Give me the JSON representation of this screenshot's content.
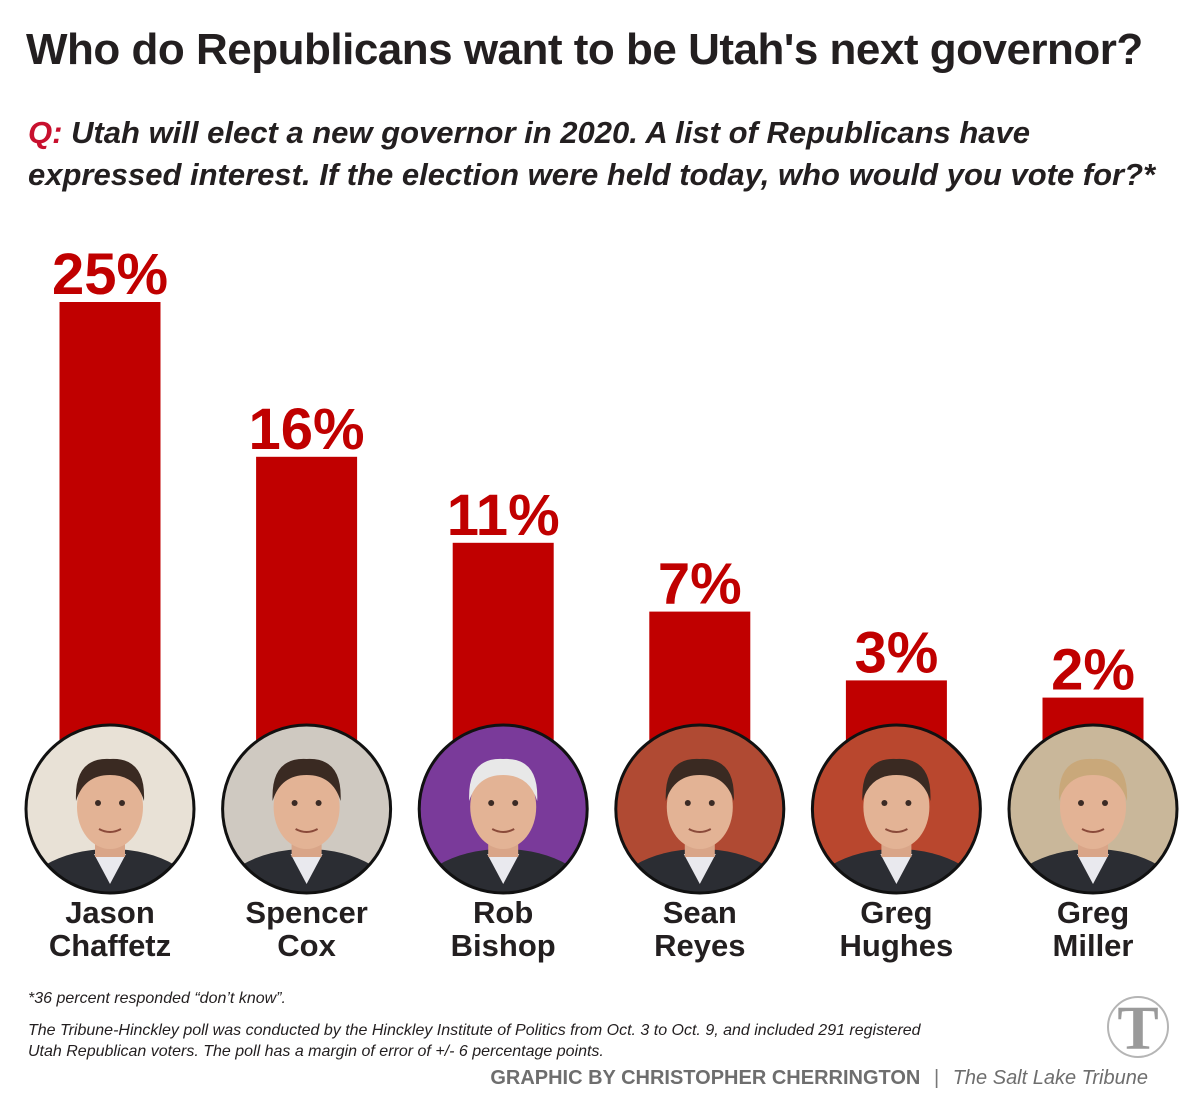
{
  "title": "Who do Republicans want to be Utah's next governor?",
  "question": {
    "prefix": "Q:",
    "text": "Utah will elect a new governor in 2020. A list of Republicans have expressed interest. If the election were held today, who would you vote for?*"
  },
  "colors": {
    "bar": "#c00000",
    "accent": "#c8102e",
    "photo_backgrounds": [
      "#e8e1d6",
      "#cfc9c1",
      "#7a3a9a",
      "#b04a33",
      "#b9472e",
      "#c9b79a"
    ]
  },
  "chart_data": {
    "type": "bar",
    "categories": [
      "Jason Chaffetz",
      "Spencer Cox",
      "Rob Bishop",
      "Sean Reyes",
      "Greg Hughes",
      "Greg Miller"
    ],
    "name_lines": [
      [
        "Jason",
        "Chaffetz"
      ],
      [
        "Spencer",
        "Cox"
      ],
      [
        "Rob",
        "Bishop"
      ],
      [
        "Sean",
        "Reyes"
      ],
      [
        "Greg",
        "Hughes"
      ],
      [
        "Greg",
        "Miller"
      ]
    ],
    "values": [
      25,
      16,
      11,
      7,
      3,
      2
    ],
    "value_labels": [
      "25%",
      "16%",
      "11%",
      "7%",
      "3%",
      "2%"
    ],
    "unit": "%",
    "ylim": [
      0,
      25
    ],
    "grid": false,
    "legend": "none"
  },
  "footnote": "*36 percent responded “don’t know”.",
  "methodology": "The Tribune-Hinckley poll was conducted by the Hinckley Institute of Politics from Oct. 3 to Oct. 9, and included 291 registered Utah Republican voters. The poll has a margin of error of +/- 6 percentage points.",
  "credit": {
    "graphic": "GRAPHIC BY CHRISTOPHER CHERRINGTON",
    "separator": "|",
    "publication": "The Salt Lake Tribune"
  },
  "logo": {
    "letter": "T",
    "icon": "tribune-t-logo"
  }
}
